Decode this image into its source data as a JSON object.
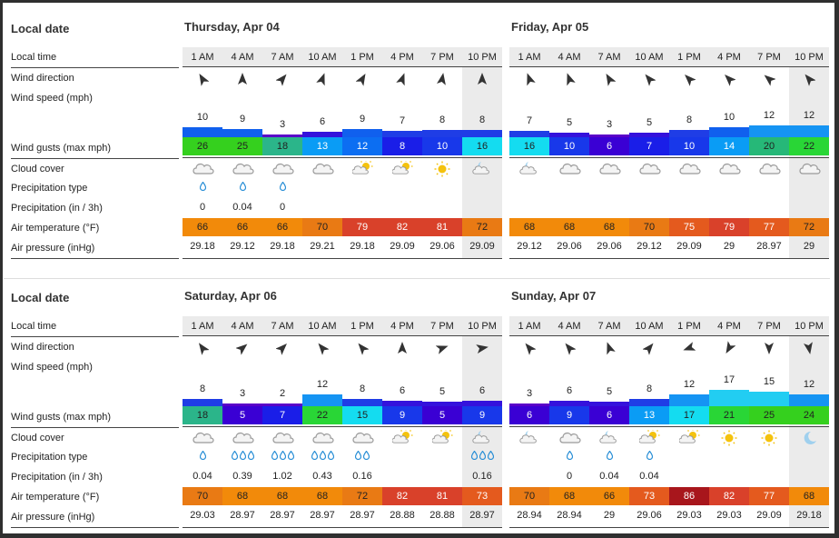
{
  "labels": {
    "local_date": "Local date",
    "local_time": "Local time",
    "wind_direction": "Wind direction",
    "wind_speed": "Wind speed  (mph)",
    "wind_gusts": "Wind gusts  (max mph)",
    "cloud_cover": "Cloud cover",
    "precip_type": "Precipitation type",
    "precip": "Precipitation  (in / 3h)",
    "air_temp": "Air temperature  (°F)",
    "air_pressure": "Air pressure  (inHg)"
  },
  "hours": [
    "1 AM",
    "4 AM",
    "7 AM",
    "10 AM",
    "1 PM",
    "4 PM",
    "7 PM",
    "10 PM"
  ],
  "blocks": [
    {
      "days": [
        {
          "title": "Thursday, Apr 04",
          "dir": [
            -30,
            0,
            40,
            20,
            30,
            20,
            10,
            0
          ],
          "speed": [
            "10",
            "9",
            "3",
            "6",
            "9",
            "7",
            "8",
            "8"
          ],
          "gust": [
            "26",
            "25",
            "18",
            "13",
            "12",
            "8",
            "10",
            "16"
          ],
          "cloud": [
            "cloud",
            "cloud",
            "cloud",
            "cloud",
            "partsun",
            "partsun",
            "sun",
            "partmoon"
          ],
          "ptype": [
            1,
            1,
            1,
            0,
            0,
            0,
            0,
            0
          ],
          "precip": [
            "0",
            "0.04",
            "0",
            "",
            "",
            "",
            "",
            ""
          ],
          "temp": [
            "66",
            "66",
            "66",
            "70",
            "79",
            "82",
            "81",
            "72"
          ],
          "pressure": [
            "29.18",
            "29.12",
            "29.18",
            "29.21",
            "29.18",
            "29.09",
            "29.06",
            "29.09"
          ]
        },
        {
          "title": "Friday, Apr 05",
          "dir": [
            -20,
            -20,
            -30,
            -40,
            -45,
            -45,
            -50,
            -40
          ],
          "speed": [
            "7",
            "5",
            "3",
            "5",
            "8",
            "10",
            "12",
            "12"
          ],
          "gust": [
            "16",
            "10",
            "6",
            "7",
            "10",
            "14",
            "20",
            "22"
          ],
          "cloud": [
            "partmoon",
            "cloud",
            "cloud",
            "cloud",
            "cloud",
            "cloud",
            "cloud",
            "cloud"
          ],
          "ptype": [
            0,
            0,
            0,
            0,
            0,
            0,
            0,
            0
          ],
          "precip": [
            "",
            "",
            "",
            "",
            "",
            "",
            "",
            ""
          ],
          "temp": [
            "68",
            "68",
            "68",
            "70",
            "75",
            "79",
            "77",
            "72"
          ],
          "pressure": [
            "29.12",
            "29.06",
            "29.06",
            "29.12",
            "29.09",
            "29",
            "28.97",
            "29"
          ]
        }
      ]
    },
    {
      "days": [
        {
          "title": "Saturday, Apr 06",
          "dir": [
            -35,
            50,
            45,
            -40,
            -40,
            0,
            70,
            80
          ],
          "speed": [
            "8",
            "3",
            "2",
            "12",
            "8",
            "6",
            "5",
            "6"
          ],
          "gust": [
            "18",
            "5",
            "7",
            "22",
            "15",
            "9",
            "5",
            "9"
          ],
          "cloud": [
            "cloud",
            "cloud",
            "cloud",
            "cloud",
            "cloud",
            "partsun",
            "partsun",
            "partmoon"
          ],
          "ptype": [
            1,
            3,
            3,
            3,
            2,
            0,
            0,
            3
          ],
          "precip": [
            "0.04",
            "0.39",
            "1.02",
            "0.43",
            "0.16",
            "",
            "",
            "0.16"
          ],
          "temp": [
            "70",
            "68",
            "68",
            "68",
            "72",
            "82",
            "81",
            "73"
          ],
          "pressure": [
            "29.03",
            "28.97",
            "28.97",
            "28.97",
            "28.97",
            "28.88",
            "28.88",
            "28.97"
          ]
        },
        {
          "title": "Sunday, Apr 07",
          "dir": [
            -40,
            -40,
            -20,
            40,
            -110,
            -150,
            180,
            170
          ],
          "speed": [
            "3",
            "6",
            "5",
            "8",
            "12",
            "17",
            "15",
            "12"
          ],
          "gust": [
            "6",
            "9",
            "6",
            "13",
            "17",
            "21",
            "25",
            "24"
          ],
          "cloud": [
            "partmoon",
            "cloud",
            "partmoon",
            "partsun",
            "partsun",
            "sun",
            "sun",
            "moon"
          ],
          "ptype": [
            0,
            1,
            1,
            1,
            0,
            0,
            0,
            0
          ],
          "precip": [
            "",
            "0",
            "0.04",
            "0.04",
            "",
            "",
            "",
            ""
          ],
          "temp": [
            "70",
            "68",
            "66",
            "73",
            "86",
            "82",
            "77",
            "68"
          ],
          "pressure": [
            "28.94",
            "28.94",
            "29",
            "29.06",
            "29.03",
            "29.03",
            "29.09",
            "29.18"
          ]
        }
      ]
    }
  ],
  "colors": {
    "speed_bar_scale": [
      "#3f00d6",
      "#1f3fe6",
      "#0f6ff0",
      "#0b96f5",
      "#21c8f5"
    ],
    "shade": "#ebebeb"
  }
}
